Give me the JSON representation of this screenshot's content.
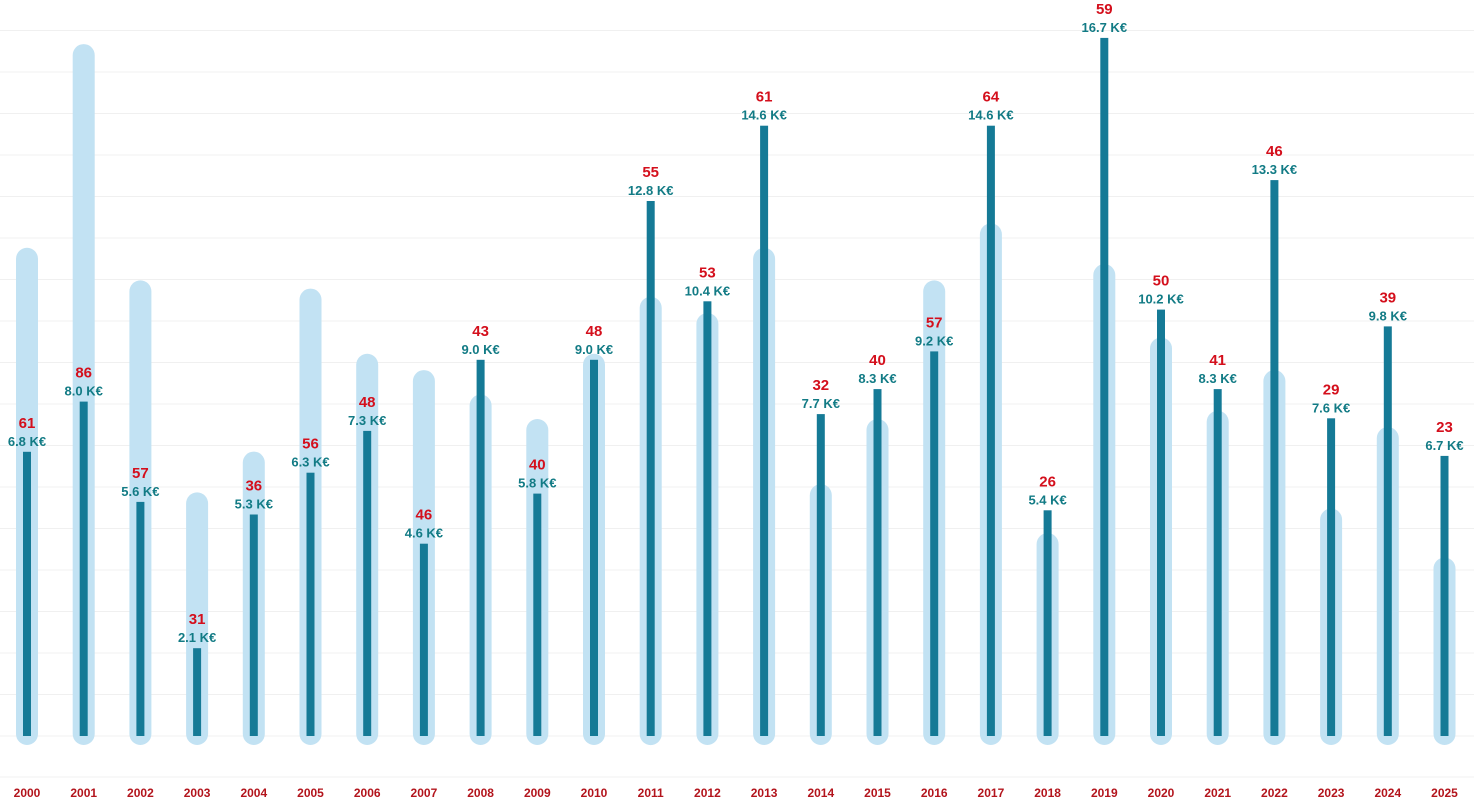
{
  "chart_data": {
    "type": "bar",
    "title": "",
    "xlabel": "",
    "ylabel": "",
    "grid": true,
    "legend": "none",
    "categories": [
      "2000",
      "2001",
      "2002",
      "2003",
      "2004",
      "2005",
      "2006",
      "2007",
      "2008",
      "2009",
      "2010",
      "2011",
      "2012",
      "2013",
      "2014",
      "2015",
      "2016",
      "2017",
      "2018",
      "2019",
      "2020",
      "2021",
      "2022",
      "2023",
      "2024",
      "2025"
    ],
    "series": [
      {
        "values": [
          61,
          86,
          57,
          31,
          36,
          56,
          48,
          46,
          43,
          40,
          48,
          55,
          53,
          61,
          32,
          40,
          57,
          64,
          26,
          59,
          50,
          41,
          46,
          29,
          39,
          23
        ],
        "labels": [
          "61",
          "86",
          "57",
          "31",
          "36",
          "56",
          "48",
          "46",
          "43",
          "40",
          "48",
          "55",
          "53",
          "61",
          "32",
          "40",
          "57",
          "64",
          "26",
          "59",
          "50",
          "41",
          "46",
          "29",
          "39",
          "23"
        ]
      },
      {
        "values": [
          6.8,
          8.0,
          5.6,
          2.1,
          5.3,
          6.3,
          7.3,
          4.6,
          9.0,
          5.8,
          9.0,
          12.8,
          10.4,
          14.6,
          7.7,
          8.3,
          9.2,
          14.6,
          5.4,
          16.7,
          10.2,
          8.3,
          13.3,
          7.6,
          9.8,
          6.7
        ],
        "labels": [
          "6.8 K€",
          "8.0 K€",
          "5.6 K€",
          "2.1 K€",
          "5.3 K€",
          "6.3 K€",
          "7.3 K€",
          "4.6 K€",
          "9.0 K€",
          "5.8 K€",
          "9.0 K€",
          "12.8 K€",
          "10.4 K€",
          "14.6 K€",
          "7.7 K€",
          "8.3 K€",
          "9.2 K€",
          "14.6 K€",
          "5.4 K€",
          "16.7 K€",
          "10.2 K€",
          "8.3 K€",
          "13.3 K€",
          "7.6 K€",
          "9.8 K€",
          "6.7 K€"
        ]
      }
    ],
    "colors": {
      "count_bar": "#c2e2f3",
      "amount_bar": "#157a96",
      "count_label": "#d40f1c",
      "amount_label": "#127b85",
      "tick_label": "#b3141c"
    }
  }
}
